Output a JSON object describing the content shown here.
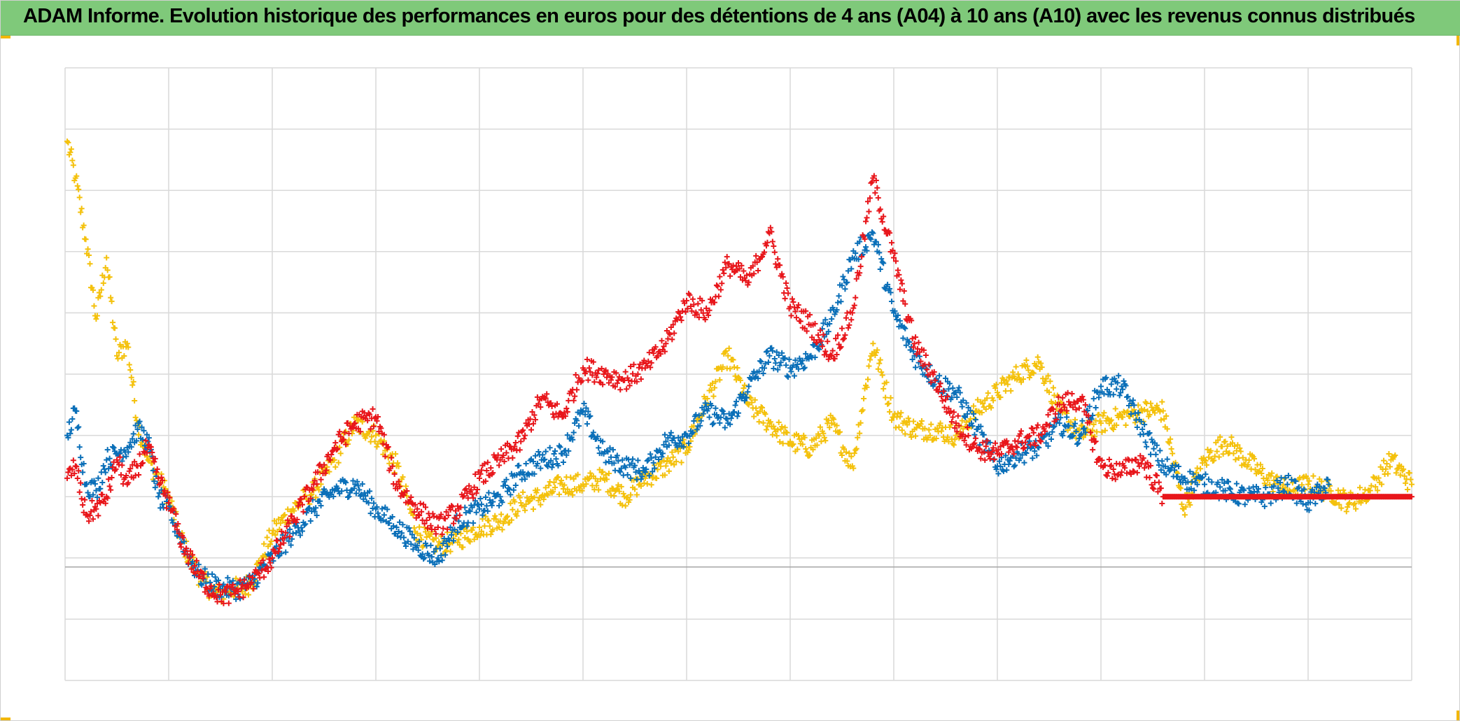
{
  "colors": {
    "header_bg": "#7fc97a",
    "grid": "#d9d9d9",
    "zero_line": "#a6a6a6",
    "A04": "#f4c10c",
    "A06": "#0a6fb8",
    "A10": "#e8161b",
    "corner_marker": "#f2b705"
  },
  "chart_data": {
    "type": "scatter",
    "title": "ADAM Informe. Evolution historique des performances en euros pour des détentions de 4 ans (A04) à 10 ans (A10) avec les revenus connus distribués",
    "xlabel": "",
    "ylabel": "",
    "xlim": [
      0,
      130
    ],
    "ylim": [
      -2,
      8
    ],
    "grid": true,
    "legend": "none",
    "marker": "plus",
    "x_gridlines": 13,
    "y_gridlines": 10,
    "series": [
      {
        "color": "#f4c10c",
        "points": [
          [
            0.2,
            6.8
          ],
          [
            1,
            6.2
          ],
          [
            2,
            5.2
          ],
          [
            3,
            3.9
          ],
          [
            4,
            4.9
          ],
          [
            5,
            3.3
          ],
          [
            6,
            3.5
          ],
          [
            7,
            2.2
          ],
          [
            8,
            1.6
          ],
          [
            9,
            1.3
          ],
          [
            10,
            1.0
          ],
          [
            11,
            0.4
          ],
          [
            12,
            0.0
          ],
          [
            13,
            -0.3
          ],
          [
            14,
            -0.5
          ],
          [
            15,
            -0.6
          ],
          [
            16,
            -0.5
          ],
          [
            17,
            -0.5
          ],
          [
            18,
            -0.4
          ],
          [
            19,
            0.0
          ],
          [
            20,
            0.4
          ],
          [
            22,
            0.8
          ],
          [
            24,
            1.1
          ],
          [
            26,
            1.6
          ],
          [
            28,
            2.2
          ],
          [
            30,
            2.0
          ],
          [
            32,
            1.5
          ],
          [
            34,
            0.4
          ],
          [
            36,
            0.2
          ],
          [
            38,
            0.3
          ],
          [
            40,
            0.5
          ],
          [
            42,
            0.6
          ],
          [
            44,
            0.9
          ],
          [
            46,
            1.0
          ],
          [
            48,
            1.2
          ],
          [
            50,
            1.2
          ],
          [
            52,
            1.3
          ],
          [
            54,
            1.0
          ],
          [
            56,
            1.3
          ],
          [
            58,
            1.5
          ],
          [
            60,
            1.8
          ],
          [
            62,
            2.6
          ],
          [
            64,
            3.3
          ],
          [
            66,
            2.5
          ],
          [
            68,
            2.2
          ],
          [
            70,
            1.9
          ],
          [
            72,
            1.8
          ],
          [
            74,
            2.2
          ],
          [
            76,
            1.5
          ],
          [
            78,
            3.5
          ],
          [
            80,
            2.3
          ],
          [
            82,
            2.1
          ],
          [
            84,
            2.1
          ],
          [
            86,
            2.0
          ],
          [
            88,
            2.4
          ],
          [
            90,
            2.7
          ],
          [
            92,
            3.0
          ],
          [
            94,
            3.2
          ],
          [
            96,
            2.4
          ],
          [
            98,
            2.0
          ],
          [
            100,
            2.2
          ],
          [
            102,
            2.3
          ],
          [
            104,
            2.4
          ],
          [
            106,
            2.4
          ],
          [
            108,
            0.8
          ],
          [
            110,
            1.6
          ],
          [
            112,
            1.9
          ],
          [
            114,
            1.6
          ],
          [
            116,
            1.3
          ],
          [
            118,
            1.1
          ],
          [
            120,
            1.2
          ],
          [
            122,
            1.1
          ],
          [
            124,
            0.9
          ],
          [
            126,
            1.1
          ],
          [
            128,
            1.6
          ],
          [
            130,
            1.2
          ]
        ]
      },
      {
        "color": "#0a6fb8",
        "points": [
          [
            0.2,
            2.0
          ],
          [
            1,
            2.4
          ],
          [
            2,
            1.2
          ],
          [
            3,
            1.1
          ],
          [
            4,
            1.6
          ],
          [
            5,
            1.7
          ],
          [
            6,
            1.8
          ],
          [
            7,
            2.1
          ],
          [
            8,
            1.9
          ],
          [
            9,
            1.0
          ],
          [
            10,
            0.8
          ],
          [
            11,
            0.4
          ],
          [
            12,
            0.0
          ],
          [
            13,
            -0.3
          ],
          [
            14,
            -0.4
          ],
          [
            15,
            -0.5
          ],
          [
            16,
            -0.5
          ],
          [
            17,
            -0.5
          ],
          [
            18,
            -0.4
          ],
          [
            19,
            -0.2
          ],
          [
            20,
            0.0
          ],
          [
            22,
            0.4
          ],
          [
            24,
            0.8
          ],
          [
            26,
            1.1
          ],
          [
            28,
            1.2
          ],
          [
            30,
            0.8
          ],
          [
            32,
            0.5
          ],
          [
            34,
            0.2
          ],
          [
            36,
            0.0
          ],
          [
            38,
            0.6
          ],
          [
            40,
            0.8
          ],
          [
            42,
            1.0
          ],
          [
            44,
            1.4
          ],
          [
            46,
            1.6
          ],
          [
            48,
            1.7
          ],
          [
            50,
            2.4
          ],
          [
            52,
            1.7
          ],
          [
            54,
            1.5
          ],
          [
            56,
            1.4
          ],
          [
            58,
            1.9
          ],
          [
            60,
            2.0
          ],
          [
            62,
            2.4
          ],
          [
            64,
            2.2
          ],
          [
            66,
            2.8
          ],
          [
            68,
            3.3
          ],
          [
            70,
            3.1
          ],
          [
            72,
            3.3
          ],
          [
            74,
            3.9
          ],
          [
            76,
            4.9
          ],
          [
            78,
            5.3
          ],
          [
            80,
            4.0
          ],
          [
            82,
            3.3
          ],
          [
            84,
            2.9
          ],
          [
            86,
            2.7
          ],
          [
            88,
            2.1
          ],
          [
            90,
            1.5
          ],
          [
            92,
            1.7
          ],
          [
            94,
            1.8
          ],
          [
            96,
            2.2
          ],
          [
            98,
            2.0
          ],
          [
            100,
            2.8
          ],
          [
            102,
            2.8
          ],
          [
            104,
            2.1
          ],
          [
            106,
            1.5
          ],
          [
            108,
            1.3
          ],
          [
            110,
            1.2
          ],
          [
            112,
            1.1
          ],
          [
            114,
            1.0
          ],
          [
            116,
            1.0
          ],
          [
            118,
            1.2
          ],
          [
            120,
            0.9
          ],
          [
            122,
            1.2
          ]
        ]
      },
      {
        "color": "#e8161b",
        "points": [
          [
            0.2,
            1.3
          ],
          [
            1,
            1.5
          ],
          [
            2,
            0.7
          ],
          [
            3,
            0.8
          ],
          [
            4,
            1.0
          ],
          [
            5,
            1.6
          ],
          [
            6,
            1.2
          ],
          [
            7,
            1.5
          ],
          [
            8,
            1.8
          ],
          [
            9,
            1.3
          ],
          [
            10,
            0.9
          ],
          [
            11,
            0.4
          ],
          [
            12,
            0.0
          ],
          [
            13,
            -0.3
          ],
          [
            14,
            -0.5
          ],
          [
            15,
            -0.6
          ],
          [
            16,
            -0.6
          ],
          [
            17,
            -0.5
          ],
          [
            18,
            -0.4
          ],
          [
            19,
            -0.2
          ],
          [
            20,
            0.0
          ],
          [
            22,
            0.6
          ],
          [
            24,
            1.2
          ],
          [
            26,
            1.8
          ],
          [
            28,
            2.2
          ],
          [
            30,
            2.3
          ],
          [
            32,
            1.2
          ],
          [
            34,
            0.8
          ],
          [
            36,
            0.5
          ],
          [
            38,
            0.8
          ],
          [
            40,
            1.3
          ],
          [
            42,
            1.6
          ],
          [
            44,
            1.9
          ],
          [
            46,
            2.6
          ],
          [
            48,
            2.3
          ],
          [
            50,
            3.1
          ],
          [
            52,
            3.0
          ],
          [
            54,
            2.9
          ],
          [
            56,
            3.1
          ],
          [
            58,
            3.5
          ],
          [
            60,
            4.2
          ],
          [
            62,
            4.0
          ],
          [
            64,
            4.8
          ],
          [
            66,
            4.5
          ],
          [
            68,
            5.3
          ],
          [
            70,
            4.1
          ],
          [
            72,
            3.8
          ],
          [
            74,
            3.3
          ],
          [
            76,
            4.0
          ],
          [
            78,
            6.2
          ],
          [
            80,
            4.9
          ],
          [
            82,
            3.5
          ],
          [
            84,
            2.9
          ],
          [
            86,
            2.2
          ],
          [
            88,
            1.8
          ],
          [
            90,
            1.7
          ],
          [
            92,
            1.9
          ],
          [
            94,
            2.0
          ],
          [
            96,
            2.5
          ],
          [
            98,
            2.6
          ],
          [
            100,
            1.5
          ],
          [
            102,
            1.4
          ],
          [
            104,
            1.6
          ],
          [
            106,
            1.0
          ],
          [
            108,
            1.0
          ],
          [
            110,
            1.0
          ],
          [
            112,
            1.0
          ],
          [
            114,
            1.0
          ],
          [
            116,
            1.0
          ],
          [
            118,
            1.0
          ],
          [
            120,
            1.0
          ],
          [
            122,
            1.0
          ],
          [
            124,
            1.0
          ],
          [
            126,
            1.0
          ],
          [
            128,
            1.0
          ],
          [
            130,
            1.0
          ]
        ]
      }
    ]
  }
}
